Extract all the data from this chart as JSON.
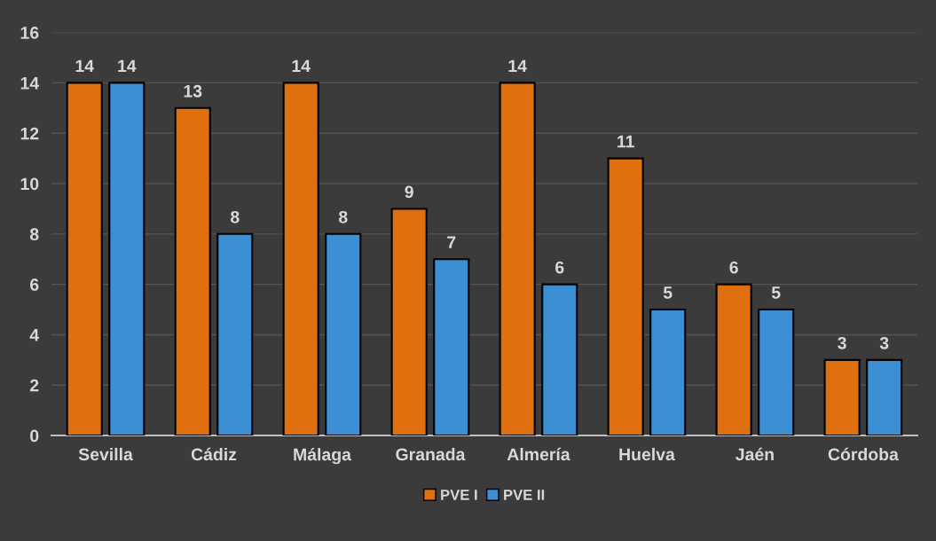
{
  "chart_data": {
    "type": "bar",
    "categories": [
      "Sevilla",
      "Cádiz",
      "Málaga",
      "Granada",
      "Almería",
      "Huelva",
      "Jaén",
      "Córdoba"
    ],
    "series": [
      {
        "name": "PVE I",
        "color": "#e0700f",
        "values": [
          14,
          13,
          14,
          9,
          14,
          11,
          6,
          3
        ]
      },
      {
        "name": "PVE II",
        "color": "#3d8fd4",
        "values": [
          14,
          8,
          8,
          7,
          6,
          5,
          5,
          3
        ]
      }
    ],
    "ylim": [
      0,
      16
    ],
    "yticks": [
      0,
      2,
      4,
      6,
      8,
      10,
      12,
      14,
      16
    ],
    "grid": "y",
    "legend": "bottom",
    "data_labels": true
  }
}
